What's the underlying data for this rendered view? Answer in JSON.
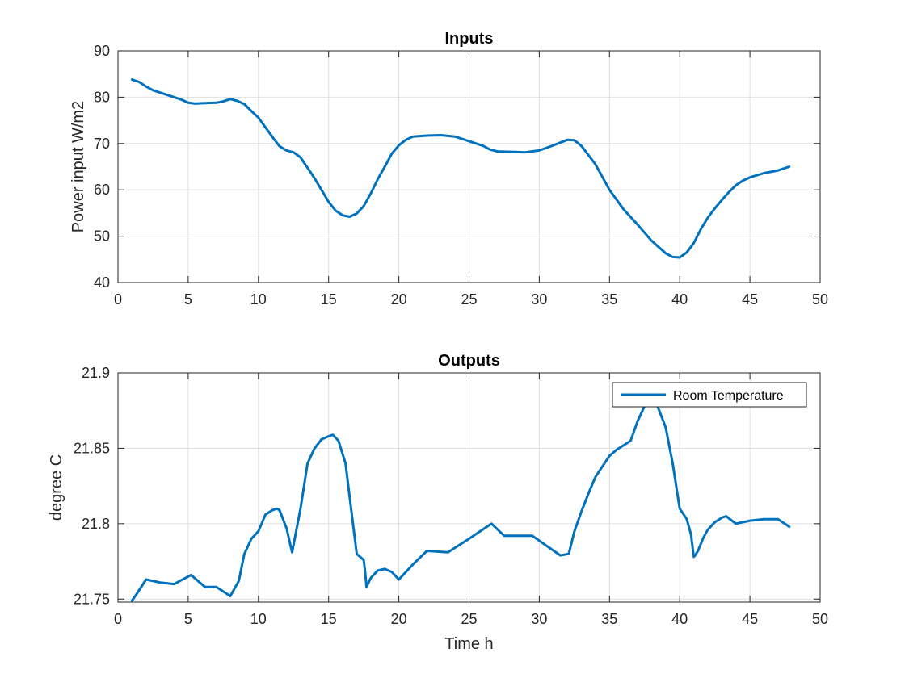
{
  "figure": {
    "background": "#ffffff",
    "axis_color": "#262626",
    "grid_color": "#dfdfdf",
    "line_color": "#0072bd"
  },
  "chart_data": [
    {
      "type": "line",
      "title": "Inputs",
      "xlabel": "",
      "ylabel": "Power input W/m2",
      "xlim": [
        0,
        50
      ],
      "ylim": [
        40,
        90
      ],
      "grid": true,
      "xticks": [
        0,
        5,
        10,
        15,
        20,
        25,
        30,
        35,
        40,
        45,
        50
      ],
      "yticks": [
        40,
        50,
        60,
        70,
        80,
        90
      ],
      "xtick_labels": [
        "0",
        "5",
        "10",
        "15",
        "20",
        "25",
        "30",
        "35",
        "40",
        "45",
        "50"
      ],
      "ytick_labels": [
        "40",
        "50",
        "60",
        "70",
        "80",
        "90"
      ],
      "series": [
        {
          "color": "#0072bd",
          "x": [
            1,
            1.5,
            2,
            2.5,
            3,
            4,
            4.5,
            5,
            5.5,
            6,
            7,
            7.5,
            8,
            8.5,
            9,
            9.5,
            10,
            10.5,
            11,
            11.5,
            12,
            12.5,
            13,
            14,
            15,
            15.5,
            16,
            16.5,
            17,
            17.5,
            18,
            18.5,
            19,
            19.5,
            20,
            20.5,
            21,
            22,
            23,
            24,
            25,
            26,
            26.5,
            27,
            28,
            29,
            30,
            31,
            32,
            32.5,
            33,
            34,
            35,
            36,
            37,
            38,
            39,
            39.5,
            40,
            40.5,
            41,
            41.5,
            42,
            42.5,
            43,
            43.5,
            44,
            44.5,
            45,
            46,
            47,
            47.8
          ],
          "y": [
            83.8,
            83.3,
            82.3,
            81.5,
            81,
            80,
            79.5,
            78.8,
            78.6,
            78.7,
            78.8,
            79.1,
            79.6,
            79.2,
            78.5,
            77,
            75.6,
            73.5,
            71.4,
            69.4,
            68.5,
            68.1,
            67,
            62.5,
            57.4,
            55.5,
            54.5,
            54.2,
            54.9,
            56.5,
            59.2,
            62.3,
            65,
            67.8,
            69.6,
            70.8,
            71.5,
            71.7,
            71.8,
            71.5,
            70.5,
            69.5,
            68.7,
            68.3,
            68.2,
            68.1,
            68.5,
            69.6,
            70.8,
            70.7,
            69.5,
            65.5,
            60,
            55.8,
            52.5,
            49,
            46.3,
            45.5,
            45.4,
            46.5,
            48.5,
            51.5,
            54,
            56,
            57.8,
            59.5,
            61,
            62,
            62.7,
            63.6,
            64.2,
            65
          ]
        }
      ]
    },
    {
      "type": "line",
      "title": "Outputs",
      "xlabel": "Time h",
      "ylabel": "degree C",
      "xlim": [
        0,
        50
      ],
      "ylim": [
        21.748,
        21.9
      ],
      "grid": true,
      "xticks": [
        0,
        5,
        10,
        15,
        20,
        25,
        30,
        35,
        40,
        45,
        50
      ],
      "yticks": [
        21.75,
        21.8,
        21.85,
        21.9
      ],
      "xtick_labels": [
        "0",
        "5",
        "10",
        "15",
        "20",
        "25",
        "30",
        "35",
        "40",
        "45",
        "50"
      ],
      "ytick_labels": [
        "21.75",
        "21.8",
        "21.85",
        "21.9"
      ],
      "legend_position": "top-right",
      "series": [
        {
          "name": "Room Temperature",
          "color": "#0072bd",
          "x": [
            1,
            1.3,
            2,
            3,
            4,
            5.2,
            6.2,
            7,
            8,
            8.6,
            9,
            9.5,
            10,
            10.5,
            11,
            11.3,
            11.5,
            12,
            12.4,
            13,
            13.5,
            14,
            14.5,
            15,
            15.3,
            15.7,
            16.2,
            16.6,
            17,
            17.5,
            17.6,
            17.7,
            18,
            18.5,
            19,
            19.5,
            20,
            21,
            22,
            23.5,
            25,
            26.6,
            27.5,
            29.5,
            31.5,
            32.1,
            32.5,
            33,
            33.5,
            34,
            34.5,
            35,
            35.5,
            36,
            36.5,
            37,
            37.6,
            38,
            38.5,
            39,
            39.5,
            40,
            40.5,
            40.8,
            41,
            41.1,
            41.3,
            41.7,
            42,
            42.5,
            43,
            43.3,
            44,
            45,
            46,
            47,
            47.8
          ],
          "y": [
            21.749,
            21.753,
            21.763,
            21.761,
            21.76,
            21.766,
            21.758,
            21.758,
            21.752,
            21.762,
            21.78,
            21.79,
            21.795,
            21.806,
            21.809,
            21.81,
            21.809,
            21.797,
            21.781,
            21.81,
            21.84,
            21.85,
            21.856,
            21.858,
            21.859,
            21.855,
            21.84,
            21.81,
            21.78,
            21.776,
            21.768,
            21.758,
            21.764,
            21.769,
            21.77,
            21.768,
            21.763,
            21.773,
            21.782,
            21.781,
            21.79,
            21.8,
            21.792,
            21.792,
            21.779,
            21.78,
            21.795,
            21.808,
            21.82,
            21.831,
            21.838,
            21.845,
            21.849,
            21.852,
            21.855,
            21.868,
            21.88,
            21.887,
            21.876,
            21.864,
            21.84,
            21.81,
            21.803,
            21.793,
            21.778,
            21.779,
            21.782,
            21.791,
            21.796,
            21.801,
            21.804,
            21.805,
            21.8,
            21.802,
            21.803,
            21.803,
            21.798
          ]
        }
      ]
    }
  ]
}
